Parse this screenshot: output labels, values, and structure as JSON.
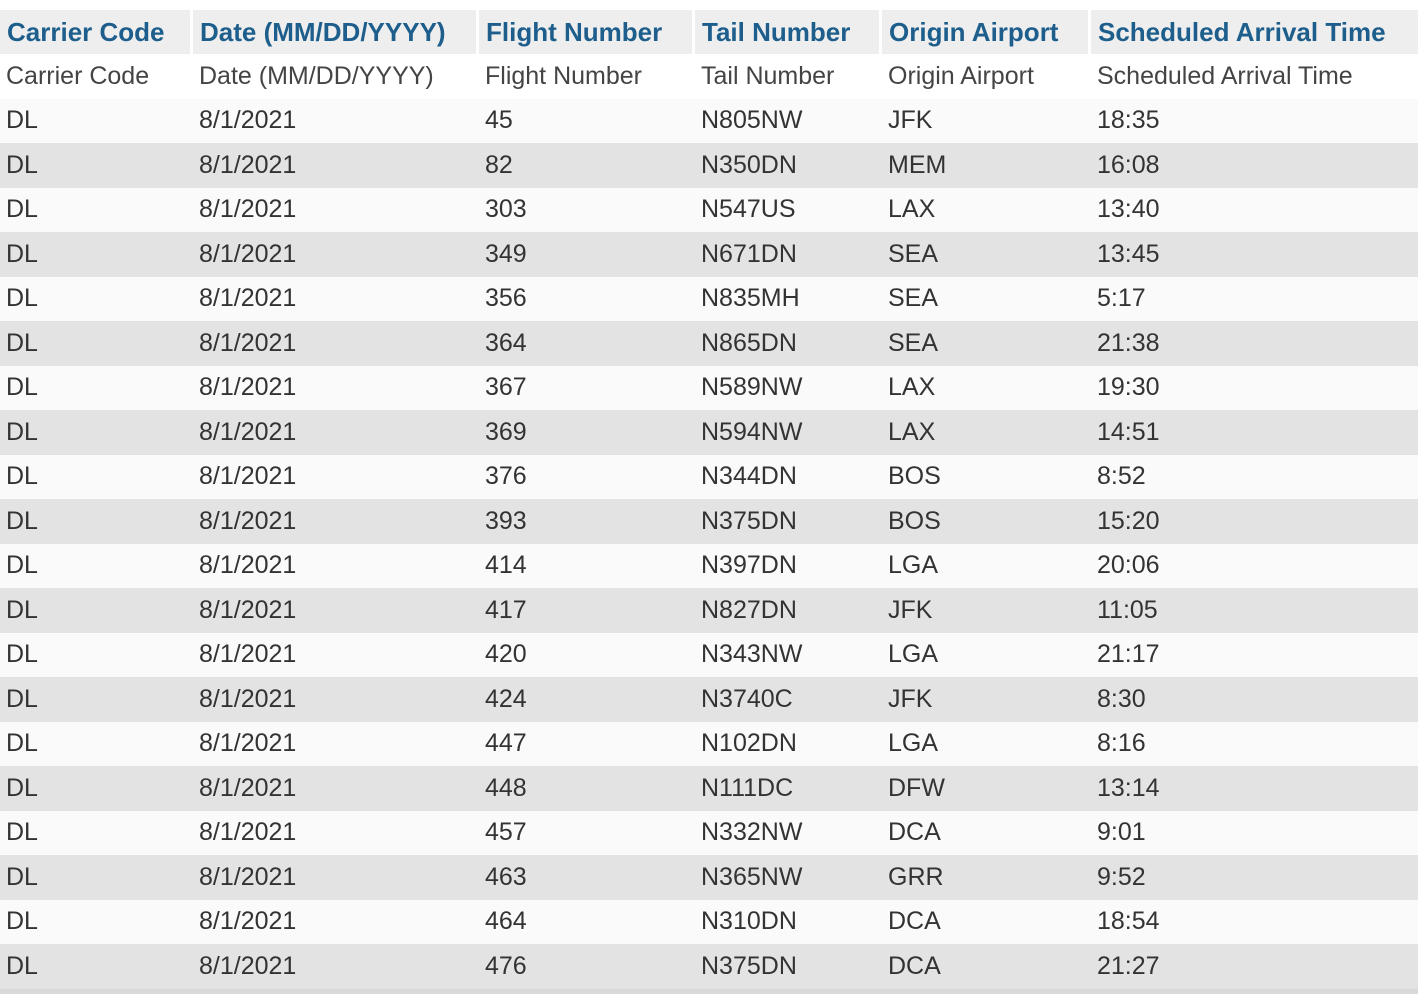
{
  "table": {
    "headers": [
      "Carrier Code",
      "Date (MM/DD/YYYY)",
      "Flight Number",
      "Tail Number",
      "Origin Airport",
      "Scheduled Arrival Time"
    ],
    "label_row": [
      "Carrier Code",
      "Date (MM/DD/YYYY)",
      "Flight Number",
      "Tail Number",
      "Origin Airport",
      "Scheduled Arrival Time"
    ],
    "rows": [
      [
        "DL",
        "8/1/2021",
        "45",
        "N805NW",
        "JFK",
        "18:35"
      ],
      [
        "DL",
        "8/1/2021",
        "82",
        "N350DN",
        "MEM",
        "16:08"
      ],
      [
        "DL",
        "8/1/2021",
        "303",
        "N547US",
        "LAX",
        "13:40"
      ],
      [
        "DL",
        "8/1/2021",
        "349",
        "N671DN",
        "SEA",
        "13:45"
      ],
      [
        "DL",
        "8/1/2021",
        "356",
        "N835MH",
        "SEA",
        "5:17"
      ],
      [
        "DL",
        "8/1/2021",
        "364",
        "N865DN",
        "SEA",
        "21:38"
      ],
      [
        "DL",
        "8/1/2021",
        "367",
        "N589NW",
        "LAX",
        "19:30"
      ],
      [
        "DL",
        "8/1/2021",
        "369",
        "N594NW",
        "LAX",
        "14:51"
      ],
      [
        "DL",
        "8/1/2021",
        "376",
        "N344DN",
        "BOS",
        "8:52"
      ],
      [
        "DL",
        "8/1/2021",
        "393",
        "N375DN",
        "BOS",
        "15:20"
      ],
      [
        "DL",
        "8/1/2021",
        "414",
        "N397DN",
        "LGA",
        "20:06"
      ],
      [
        "DL",
        "8/1/2021",
        "417",
        "N827DN",
        "JFK",
        "11:05"
      ],
      [
        "DL",
        "8/1/2021",
        "420",
        "N343NW",
        "LGA",
        "21:17"
      ],
      [
        "DL",
        "8/1/2021",
        "424",
        "N3740C",
        "JFK",
        "8:30"
      ],
      [
        "DL",
        "8/1/2021",
        "447",
        "N102DN",
        "LGA",
        "8:16"
      ],
      [
        "DL",
        "8/1/2021",
        "448",
        "N111DC",
        "DFW",
        "13:14"
      ],
      [
        "DL",
        "8/1/2021",
        "457",
        "N332NW",
        "DCA",
        "9:01"
      ],
      [
        "DL",
        "8/1/2021",
        "463",
        "N365NW",
        "GRR",
        "9:52"
      ],
      [
        "DL",
        "8/1/2021",
        "464",
        "N310DN",
        "DCA",
        "18:54"
      ],
      [
        "DL",
        "8/1/2021",
        "476",
        "N375DN",
        "DCA",
        "21:27"
      ]
    ]
  },
  "colors": {
    "header_text": "#1d5e8c",
    "header_bg": "#eeeeee",
    "row_odd_bg": "#e3e3e3",
    "row_even_bg": "#fafafa"
  }
}
